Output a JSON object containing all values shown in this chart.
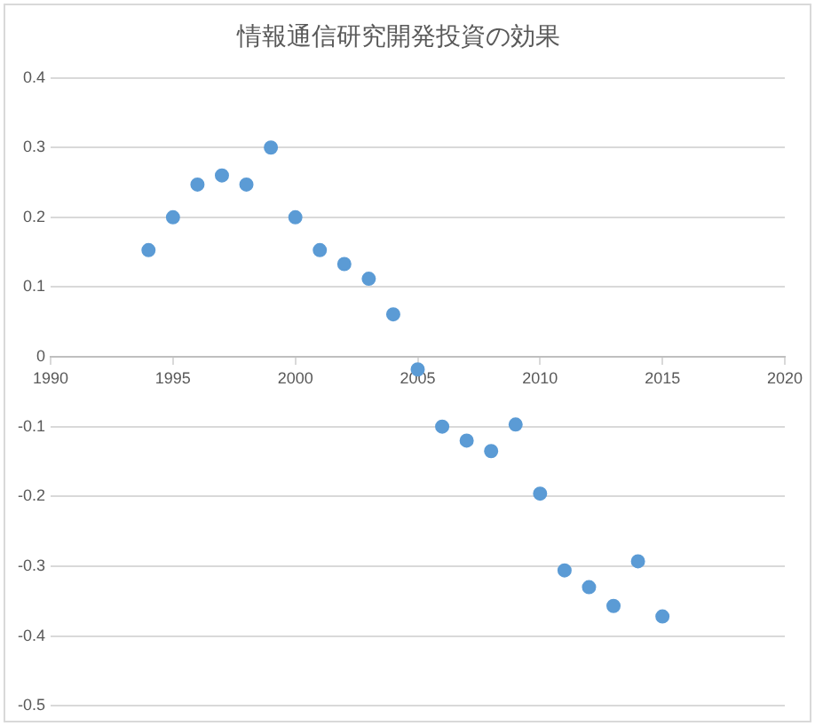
{
  "chart_data": {
    "type": "scatter",
    "title": "情報通信研究開発投資の効果",
    "x": [
      1994,
      1995,
      1996,
      1997,
      1998,
      1999,
      2000,
      2001,
      2002,
      2003,
      2004,
      2005,
      2006,
      2007,
      2008,
      2009,
      2010,
      2011,
      2012,
      2013,
      2014,
      2015
    ],
    "series": [
      {
        "color": "#5b9bd5",
        "values": [
          0.153,
          0.2,
          0.247,
          0.26,
          0.247,
          0.3,
          0.2,
          0.153,
          0.133,
          0.112,
          0.061,
          -0.018,
          -0.1,
          -0.12,
          -0.135,
          -0.097,
          -0.196,
          -0.306,
          -0.33,
          -0.357,
          -0.293,
          -0.372
        ]
      }
    ],
    "xlim": [
      1990,
      2020
    ],
    "xticks": [
      1990,
      1995,
      2000,
      2005,
      2010,
      2015,
      2020
    ],
    "ylim": [
      -0.5,
      0.4
    ],
    "yticks": [
      -0.5,
      -0.4,
      -0.3,
      -0.2,
      -0.1,
      0,
      0.1,
      0.2,
      0.3,
      0.4
    ],
    "grid": "y",
    "marker": "circle",
    "legend": false
  }
}
